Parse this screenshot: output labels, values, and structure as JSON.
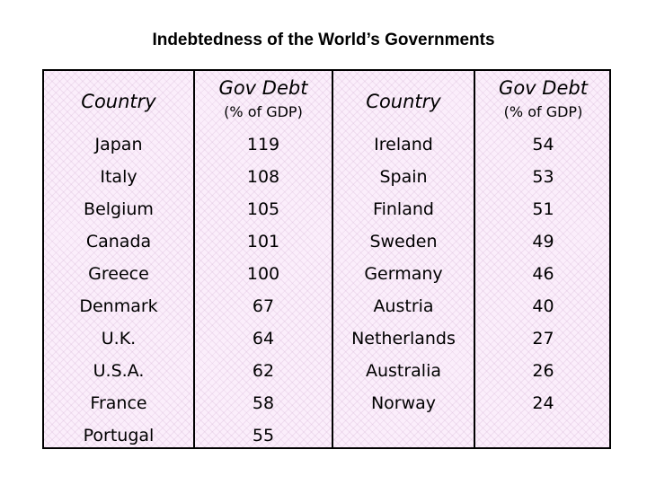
{
  "title": "Indebtedness of the World’s Governments",
  "chart_data": {
    "type": "table",
    "columns": [
      {
        "header": "Country"
      },
      {
        "header": "Gov Debt",
        "subheader": "(% of GDP)"
      },
      {
        "header": "Country"
      },
      {
        "header": "Gov Debt",
        "subheader": "(% of GDP)"
      }
    ],
    "left": [
      {
        "country": "Japan",
        "debt": 119
      },
      {
        "country": "Italy",
        "debt": 108
      },
      {
        "country": "Belgium",
        "debt": 105
      },
      {
        "country": "Canada",
        "debt": 101
      },
      {
        "country": "Greece",
        "debt": 100
      },
      {
        "country": "Denmark",
        "debt": 67
      },
      {
        "country": "U.K.",
        "debt": 64
      },
      {
        "country": "U.S.A.",
        "debt": 62
      },
      {
        "country": "France",
        "debt": 58
      },
      {
        "country": "Portugal",
        "debt": 55
      }
    ],
    "right": [
      {
        "country": "Ireland",
        "debt": 54
      },
      {
        "country": "Spain",
        "debt": 53
      },
      {
        "country": "Finland",
        "debt": 51
      },
      {
        "country": "Sweden",
        "debt": 49
      },
      {
        "country": "Germany",
        "debt": 46
      },
      {
        "country": "Austria",
        "debt": 40
      },
      {
        "country": "Netherlands",
        "debt": 27
      },
      {
        "country": "Australia",
        "debt": 26
      },
      {
        "country": "Norway",
        "debt": 24
      }
    ]
  }
}
